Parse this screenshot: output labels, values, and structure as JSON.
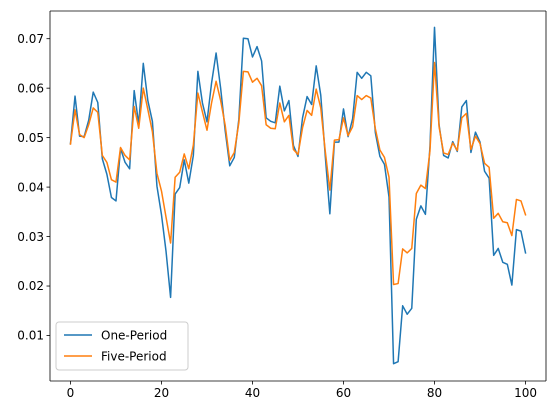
{
  "chart_data": {
    "type": "line",
    "title": "",
    "xlabel": "",
    "ylabel": "",
    "xlim": [
      -4.5,
      104.5
    ],
    "ylim": [
      0.0008,
      0.0756
    ],
    "x_ticks": [
      0,
      20,
      40,
      60,
      80,
      100
    ],
    "x_tick_labels": [
      "0",
      "20",
      "40",
      "60",
      "80",
      "100"
    ],
    "y_ticks": [
      0.01,
      0.02,
      0.03,
      0.04,
      0.05,
      0.06,
      0.07
    ],
    "y_tick_labels": [
      "0.01",
      "0.02",
      "0.03",
      "0.04",
      "0.05",
      "0.06",
      "0.07"
    ],
    "grid": false,
    "legend_placement": "lower-left",
    "x": [
      0,
      1,
      2,
      3,
      4,
      5,
      6,
      7,
      8,
      9,
      10,
      11,
      12,
      13,
      14,
      15,
      16,
      17,
      18,
      19,
      20,
      21,
      22,
      23,
      24,
      25,
      26,
      27,
      28,
      29,
      30,
      31,
      32,
      33,
      34,
      35,
      36,
      37,
      38,
      39,
      40,
      41,
      42,
      43,
      44,
      45,
      46,
      47,
      48,
      49,
      50,
      51,
      52,
      53,
      54,
      55,
      56,
      57,
      58,
      59,
      60,
      61,
      62,
      63,
      64,
      65,
      66,
      67,
      68,
      69,
      70,
      71,
      72,
      73,
      74,
      75,
      76,
      77,
      78,
      79,
      80,
      81,
      82,
      83,
      84,
      85,
      86,
      87,
      88,
      89,
      90,
      91,
      92,
      93,
      94,
      95,
      96,
      97,
      98,
      99,
      100
    ],
    "series": [
      {
        "name": "One-Period",
        "color": "#1f77b4",
        "values": [
          0.0488,
          0.0584,
          0.0503,
          0.0502,
          0.0535,
          0.0592,
          0.0571,
          0.0457,
          0.0426,
          0.0379,
          0.0372,
          0.0478,
          0.045,
          0.0437,
          0.0595,
          0.0527,
          0.065,
          0.0575,
          0.0533,
          0.0402,
          0.0344,
          0.027,
          0.0177,
          0.0386,
          0.0399,
          0.0455,
          0.0408,
          0.0464,
          0.0634,
          0.057,
          0.0532,
          0.061,
          0.0671,
          0.06,
          0.0514,
          0.0443,
          0.046,
          0.0537,
          0.0701,
          0.07,
          0.0663,
          0.0684,
          0.0655,
          0.054,
          0.0533,
          0.053,
          0.0604,
          0.0554,
          0.0575,
          0.0484,
          0.0462,
          0.054,
          0.0583,
          0.0567,
          0.0645,
          0.0586,
          0.0462,
          0.0346,
          0.0491,
          0.0491,
          0.0558,
          0.0502,
          0.0538,
          0.0632,
          0.062,
          0.0632,
          0.0625,
          0.051,
          0.0462,
          0.0446,
          0.038,
          0.0043,
          0.0047,
          0.016,
          0.0143,
          0.0155,
          0.0335,
          0.0362,
          0.0345,
          0.0482,
          0.0723,
          0.0526,
          0.0464,
          0.0459,
          0.0492,
          0.0472,
          0.0562,
          0.0575,
          0.047,
          0.0511,
          0.0491,
          0.0432,
          0.0418,
          0.0262,
          0.0276,
          0.0248,
          0.0244,
          0.0202,
          0.0314,
          0.0311,
          0.0267
        ]
      },
      {
        "name": "Five-Period",
        "color": "#ff7f0e",
        "values": [
          0.0487,
          0.0556,
          0.0506,
          0.05,
          0.0526,
          0.056,
          0.0551,
          0.0464,
          0.045,
          0.0415,
          0.041,
          0.048,
          0.0464,
          0.0455,
          0.0563,
          0.0519,
          0.06,
          0.0557,
          0.0512,
          0.0428,
          0.0392,
          0.0339,
          0.0287,
          0.042,
          0.043,
          0.0467,
          0.0437,
          0.0485,
          0.059,
          0.0552,
          0.0515,
          0.057,
          0.0614,
          0.0575,
          0.0525,
          0.0454,
          0.047,
          0.053,
          0.0634,
          0.0633,
          0.0612,
          0.062,
          0.0605,
          0.0526,
          0.0519,
          0.0518,
          0.057,
          0.0532,
          0.0545,
          0.0476,
          0.0466,
          0.052,
          0.0555,
          0.0545,
          0.0598,
          0.056,
          0.0472,
          0.0394,
          0.0495,
          0.0496,
          0.054,
          0.0504,
          0.0522,
          0.0585,
          0.0577,
          0.0585,
          0.058,
          0.0518,
          0.0475,
          0.046,
          0.042,
          0.0203,
          0.0205,
          0.0275,
          0.0267,
          0.0276,
          0.0387,
          0.0404,
          0.0397,
          0.0473,
          0.0652,
          0.0522,
          0.0469,
          0.0466,
          0.0489,
          0.0474,
          0.054,
          0.0549,
          0.0476,
          0.0503,
          0.0488,
          0.0448,
          0.044,
          0.0337,
          0.0347,
          0.033,
          0.0328,
          0.0302,
          0.0375,
          0.0372,
          0.0344
        ]
      }
    ]
  }
}
